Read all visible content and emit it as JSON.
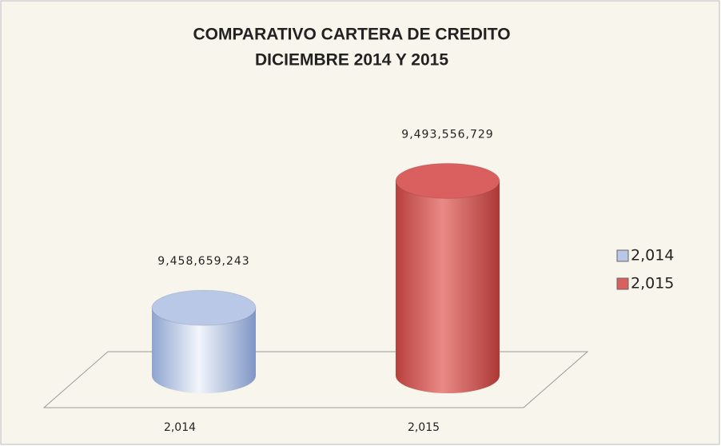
{
  "chart_data": {
    "type": "bar3d",
    "title": "COMPARATIVO CARTERA DE CREDITO",
    "subtitle": "DICIEMBRE 2014 Y 2015",
    "categories": [
      "2,014",
      "2,015"
    ],
    "series": [
      {
        "name": "2,014",
        "color": "#b8c8e6",
        "values": [
          9458659243,
          null
        ],
        "value_labels": [
          "9,458,659,243",
          null
        ]
      },
      {
        "name": "2,015",
        "color": "#d9605e",
        "values": [
          null,
          9493556729
        ],
        "value_labels": [
          null,
          "9,493,556,729"
        ]
      }
    ],
    "ylim": [
      9440000000,
      9500000000
    ],
    "legend": "right"
  }
}
